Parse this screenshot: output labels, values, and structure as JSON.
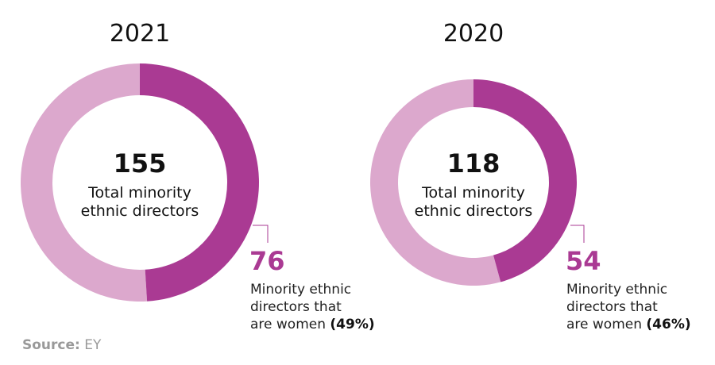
{
  "chart_data": [
    {
      "type": "pie",
      "title": "2021",
      "total": 155,
      "total_label_lines": [
        "Total minority",
        "ethnic directors"
      ],
      "highlight_value": 76,
      "highlight_percent": 49,
      "highlight_label_lines": [
        "Minority ethnic",
        "directors that",
        "are women"
      ],
      "highlight_percent_label": "(49%)"
    },
    {
      "type": "pie",
      "title": "2020",
      "total": 118,
      "total_label_lines": [
        "Total minority",
        "ethnic directors"
      ],
      "highlight_value": 54,
      "highlight_percent": 46,
      "highlight_label_lines": [
        "Minority ethnic",
        "directors that",
        "are women"
      ],
      "highlight_percent_label": "(46%)"
    }
  ],
  "colors": {
    "highlight": "#aa3a93",
    "rest": "#dca8cd"
  },
  "source": {
    "label": "Source:",
    "value": "EY"
  }
}
